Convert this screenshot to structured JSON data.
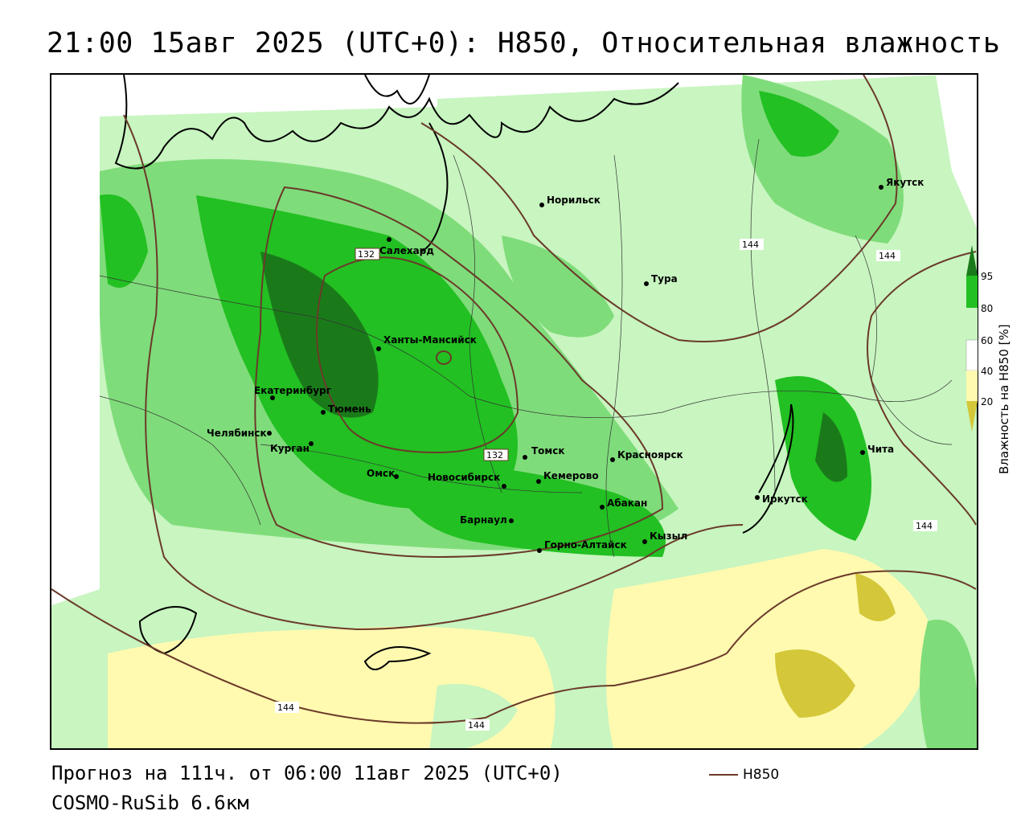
{
  "header": {
    "title": "21:00 15авг 2025 (UTC+0): H850, Относительная влажность"
  },
  "footer": {
    "forecast": "Прогноз на 111ч. от 06:00 11авг 2025 (UTC+0)",
    "model": "COSMO-RuSib 6.6км"
  },
  "series_legend": {
    "label": "H850",
    "color": "#6b3a2a"
  },
  "colorbar": {
    "title": "Влажность на H850 [%]",
    "ticks": [
      "95",
      "80",
      "60",
      "40",
      "20"
    ],
    "colors": {
      "very_high": "#1a7a1a",
      "high": "#22c022",
      "mid": "#c8f5c0",
      "low": "#fffab0",
      "very_low": "#d4c83a"
    }
  },
  "map": {
    "cities": [
      {
        "name": "Норильск"
      },
      {
        "name": "Якутск"
      },
      {
        "name": "Салехард"
      },
      {
        "name": "Тура"
      },
      {
        "name": "Ханты-Мансийск"
      },
      {
        "name": "Екатеринбург"
      },
      {
        "name": "Тюмень"
      },
      {
        "name": "Челябинск"
      },
      {
        "name": "Курган"
      },
      {
        "name": "Омск"
      },
      {
        "name": "Новосибирск"
      },
      {
        "name": "Томск"
      },
      {
        "name": "Кемерово"
      },
      {
        "name": "Красноярск"
      },
      {
        "name": "Барнаул"
      },
      {
        "name": "Абакан"
      },
      {
        "name": "Горно-Алтайск"
      },
      {
        "name": "Кызыл"
      },
      {
        "name": "Иркутск"
      },
      {
        "name": "Чита"
      }
    ],
    "isoline_labels": [
      "132",
      "132",
      "144",
      "144",
      "144",
      "144",
      "144"
    ]
  }
}
